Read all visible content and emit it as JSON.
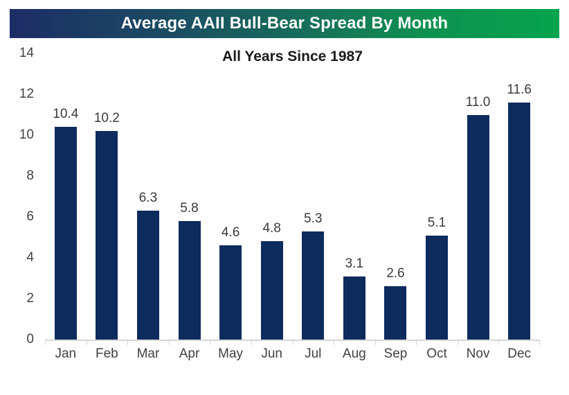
{
  "banner": {
    "title": "Average AAII Bull-Bear Spread By Month",
    "gradient_left_color": "#1d2d66",
    "gradient_mid_color": "#176c5b",
    "gradient_right_color": "#05a44d",
    "text_color": "#ffffff"
  },
  "chart_data": {
    "type": "bar",
    "title": "All Years Since 1987",
    "xlabel": "",
    "ylabel": "",
    "categories": [
      "Jan",
      "Feb",
      "Mar",
      "Apr",
      "May",
      "Jun",
      "Jul",
      "Aug",
      "Sep",
      "Oct",
      "Nov",
      "Dec"
    ],
    "values": [
      10.4,
      10.2,
      6.3,
      5.8,
      4.6,
      4.8,
      5.3,
      3.1,
      2.6,
      5.1,
      11.0,
      11.6
    ],
    "value_label_decimals": 1,
    "ylim": [
      0,
      14
    ],
    "yticks": [
      0,
      2,
      4,
      6,
      8,
      10,
      12,
      14
    ],
    "grid": false,
    "legend_position": "none",
    "bar_color": "#0e2b5e",
    "value_label_color": "#3a3a3a",
    "axis_label_color": "#404040",
    "axis_line_color": "#d6d6d6"
  }
}
